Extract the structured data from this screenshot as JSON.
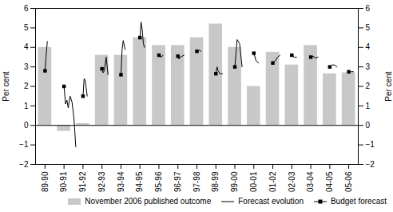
{
  "chart_data": {
    "type": "bar",
    "categories": [
      "89-90",
      "90-91",
      "91-92",
      "92-93",
      "93-94",
      "94-95",
      "95-96",
      "96-97",
      "97-98",
      "98-99",
      "99-00",
      "00-01",
      "01-02",
      "02-03",
      "03-04",
      "04-05",
      "05-06"
    ],
    "xlim": [
      -0.5,
      16.5
    ],
    "ylabel": "Per cent",
    "y2label": "Per cent",
    "ylim": [
      -2,
      6
    ],
    "yticks": [
      -2,
      -1,
      0,
      1,
      2,
      3,
      4,
      5,
      6
    ],
    "y2lim": [
      -2,
      6
    ],
    "y2ticks": [
      -2,
      -1,
      0,
      1,
      2,
      3,
      4,
      5,
      6
    ],
    "legend": "lower right",
    "series": [
      {
        "name": "November 2006 published outcome",
        "type": "bar",
        "color": "#c8c8c8",
        "values": [
          4.0,
          -0.3,
          0.1,
          3.6,
          3.6,
          4.5,
          4.1,
          4.1,
          4.5,
          5.2,
          4.0,
          2.0,
          3.75,
          3.1,
          4.1,
          2.65,
          2.7
        ]
      },
      {
        "name": "Forecast evolution",
        "type": "line",
        "color": "#000000",
        "segments": [
          {
            "x": [
              0.0,
              0.05,
              0.12
            ],
            "y": [
              2.8,
              3.5,
              4.3
            ]
          },
          {
            "x": [
              1.0,
              1.08,
              1.15,
              1.22,
              1.32,
              1.42,
              1.52,
              1.62
            ],
            "y": [
              2.0,
              1.1,
              1.3,
              0.9,
              1.5,
              1.2,
              0.4,
              -1.1
            ]
          },
          {
            "x": [
              2.0,
              2.06,
              2.12,
              2.22
            ],
            "y": [
              1.5,
              2.4,
              2.3,
              1.5
            ]
          },
          {
            "x": [
              3.0,
              3.06,
              3.12,
              3.22,
              3.32
            ],
            "y": [
              2.9,
              2.7,
              2.8,
              3.5,
              2.6
            ]
          },
          {
            "x": [
              4.0,
              4.06,
              4.12,
              4.22
            ],
            "y": [
              2.6,
              3.9,
              4.35,
              3.9
            ]
          },
          {
            "x": [
              5.0,
              5.06,
              5.12,
              5.18,
              5.24
            ],
            "y": [
              4.5,
              5.3,
              4.9,
              4.2,
              4.0
            ]
          },
          {
            "x": [
              6.0,
              6.06,
              6.12,
              6.22
            ],
            "y": [
              3.6,
              3.6,
              3.5,
              3.6
            ]
          },
          {
            "x": [
              7.0,
              7.06,
              7.12,
              7.22,
              7.32
            ],
            "y": [
              3.55,
              3.4,
              3.5,
              3.55,
              3.6
            ]
          },
          {
            "x": [
              8.0,
              8.06,
              8.12,
              8.22
            ],
            "y": [
              3.8,
              3.8,
              3.85,
              3.8
            ]
          },
          {
            "x": [
              9.0,
              9.06,
              9.12,
              9.22,
              9.35
            ],
            "y": [
              2.65,
              3.0,
              2.8,
              2.65,
              2.65
            ]
          },
          {
            "x": [
              10.0,
              10.12,
              10.25,
              10.38
            ],
            "y": [
              3.0,
              4.4,
              4.2,
              3.0
            ]
          },
          {
            "x": [
              11.0,
              11.12,
              11.25
            ],
            "y": [
              3.7,
              3.3,
              3.2
            ]
          },
          {
            "x": [
              12.0,
              12.12,
              12.25,
              12.38
            ],
            "y": [
              3.2,
              3.3,
              3.5,
              3.6
            ]
          },
          {
            "x": [
              13.0,
              13.12,
              13.25
            ],
            "y": [
              3.6,
              3.5,
              3.5
            ]
          },
          {
            "x": [
              14.0,
              14.12,
              14.25,
              14.38
            ],
            "y": [
              3.5,
              3.55,
              3.45,
              3.5
            ]
          },
          {
            "x": [
              15.0,
              15.12,
              15.25,
              15.38
            ],
            "y": [
              3.0,
              3.1,
              3.1,
              3.0
            ]
          },
          {
            "x": [
              16.0,
              16.12,
              16.25
            ],
            "y": [
              2.75,
              2.75,
              2.75
            ]
          }
        ]
      },
      {
        "name": "Budget forecast",
        "type": "scatter",
        "marker": "square",
        "color": "#000000",
        "values": [
          2.8,
          2.0,
          1.5,
          2.9,
          2.6,
          4.5,
          3.6,
          3.55,
          3.8,
          2.65,
          3.0,
          3.7,
          3.2,
          3.6,
          3.5,
          3.0,
          2.75
        ]
      }
    ]
  }
}
